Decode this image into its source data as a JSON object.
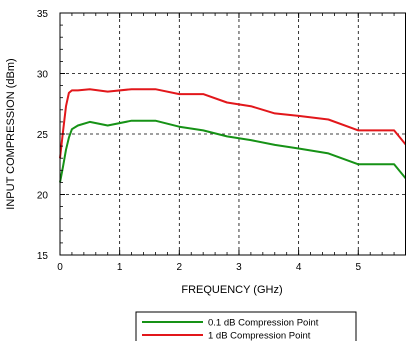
{
  "chart_data": {
    "type": "line",
    "title": "",
    "xlabel": "FREQUENCY (GHz)",
    "ylabel": "INPUT COMPRESSION (dBm)",
    "xlim": [
      0,
      5.8
    ],
    "ylim": [
      15,
      35
    ],
    "x_ticks": [
      0,
      1,
      2,
      3,
      4,
      5
    ],
    "y_ticks": [
      15,
      20,
      25,
      30,
      35
    ],
    "grid": "dashed",
    "legend_position": "bottom-center",
    "series": [
      {
        "name": "0.1 dB Compression Point",
        "color": "#169216",
        "x": [
          0.0,
          0.05,
          0.1,
          0.15,
          0.2,
          0.3,
          0.5,
          0.8,
          1.2,
          1.6,
          2.0,
          2.4,
          2.8,
          3.2,
          3.6,
          4.0,
          4.5,
          5.0,
          5.6,
          5.8
        ],
        "y": [
          21.0,
          22.3,
          23.7,
          24.7,
          25.4,
          25.7,
          26.0,
          25.7,
          26.1,
          26.1,
          25.6,
          25.3,
          24.8,
          24.5,
          24.1,
          23.8,
          23.4,
          22.5,
          22.5,
          21.3
        ]
      },
      {
        "name": "1 dB Compression Point",
        "color": "#e2171b",
        "x": [
          0.0,
          0.05,
          0.1,
          0.15,
          0.2,
          0.3,
          0.5,
          0.8,
          1.2,
          1.6,
          2.0,
          2.4,
          2.8,
          3.2,
          3.6,
          4.0,
          4.5,
          5.0,
          5.6,
          5.8
        ],
        "y": [
          23.0,
          25.2,
          27.3,
          28.4,
          28.6,
          28.6,
          28.7,
          28.5,
          28.7,
          28.7,
          28.3,
          28.3,
          27.6,
          27.3,
          26.7,
          26.5,
          26.2,
          25.3,
          25.3,
          24.1
        ]
      }
    ]
  }
}
